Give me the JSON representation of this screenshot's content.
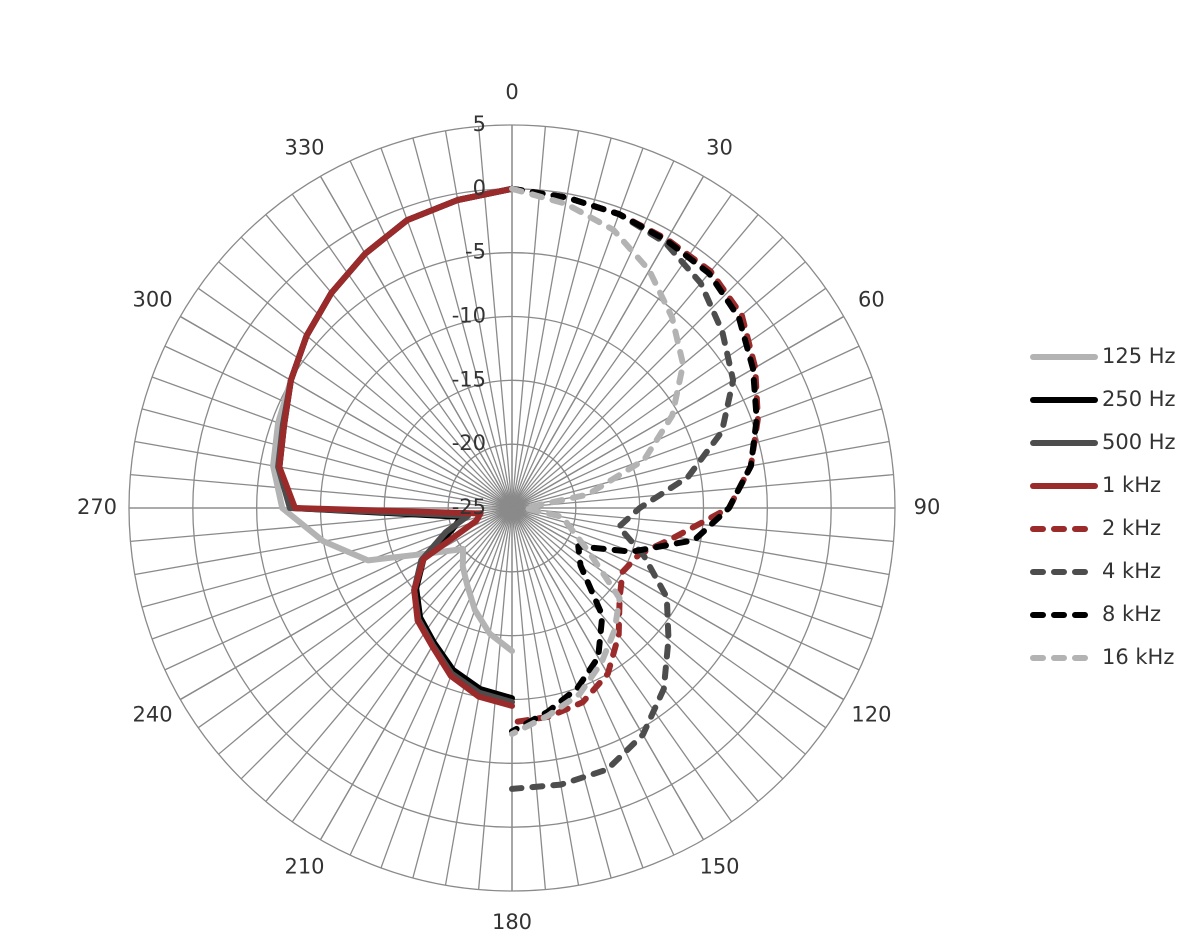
{
  "chart_data": {
    "type": "polar",
    "x": [
      0,
      10,
      20,
      30,
      40,
      50,
      60,
      70,
      80,
      90,
      100,
      110,
      120,
      130,
      140,
      150,
      160,
      170,
      180,
      190,
      200,
      210,
      220,
      230,
      240,
      250,
      260,
      270,
      280,
      290,
      300,
      310,
      320,
      330,
      340,
      350,
      360
    ],
    "rlim": [
      -25,
      5
    ],
    "rticks": [
      -25,
      -20,
      -15,
      -10,
      -5,
      0,
      5
    ],
    "angle_ticks": [
      0,
      30,
      60,
      90,
      120,
      150,
      180,
      210,
      240,
      270,
      300,
      330
    ],
    "legend": "right",
    "series": [
      {
        "name": "125 Hz",
        "color": "#b3b3b3",
        "dashed": false,
        "values": [
          null,
          null,
          null,
          null,
          null,
          null,
          null,
          null,
          null,
          null,
          null,
          null,
          null,
          null,
          null,
          null,
          null,
          null,
          -13.8,
          -15,
          -16.5,
          -18,
          -19,
          -20,
          -18,
          -13,
          -10,
          -7,
          -6,
          -5.5,
          -5,
          -4,
          -3,
          -2,
          -1,
          -0.5,
          0
        ]
      },
      {
        "name": "250 Hz",
        "color": "#000000",
        "dashed": false,
        "values": [
          null,
          null,
          null,
          null,
          null,
          null,
          null,
          null,
          null,
          null,
          null,
          null,
          null,
          null,
          null,
          null,
          null,
          null,
          -10.1,
          -10.6,
          -11.5,
          -12.8,
          -13.8,
          -15.2,
          -17,
          -20,
          -21,
          -7.8,
          -6.5,
          -6,
          -5,
          -4,
          -3,
          -2,
          -1,
          -0.5,
          0
        ]
      },
      {
        "name": "500 Hz",
        "color": "#4d4d4d",
        "dashed": false,
        "values": [
          null,
          null,
          null,
          null,
          null,
          null,
          null,
          null,
          null,
          null,
          null,
          null,
          null,
          null,
          null,
          null,
          null,
          null,
          -9.8,
          -10.3,
          -11.2,
          -12.6,
          -13.6,
          -15,
          -16.8,
          -19.5,
          -21.5,
          -7.6,
          -6.4,
          -5.9,
          -5,
          -4,
          -3,
          -2,
          -1,
          -0.5,
          0
        ]
      },
      {
        "name": "1 kHz",
        "color": "#9b2a2b",
        "dashed": false,
        "values": [
          null,
          null,
          null,
          null,
          null,
          null,
          null,
          null,
          null,
          null,
          null,
          null,
          null,
          null,
          null,
          null,
          null,
          null,
          -9.5,
          -10,
          -11,
          -12.5,
          -13.5,
          -15,
          -17,
          -22,
          -22.5,
          -8,
          -6.5,
          -6,
          -5,
          -4,
          -3,
          -2,
          -1,
          -0.5,
          0
        ]
      },
      {
        "name": "2 kHz",
        "color": "#9b2a2b",
        "dashed": true,
        "values": [
          0,
          -0.3,
          -0.5,
          -0.7,
          -0.8,
          -1.5,
          -3,
          -4.5,
          -6,
          -8,
          -12,
          -14.4,
          -15,
          -14,
          -12,
          -10,
          -8.8,
          -8.4,
          -8.2,
          null,
          null,
          null,
          null,
          null,
          null,
          null,
          null,
          null,
          null,
          null,
          null,
          null,
          null,
          null,
          null,
          null,
          null
        ]
      },
      {
        "name": "4 kHz",
        "color": "#4d4d4d",
        "dashed": true,
        "values": [
          0,
          -0.3,
          -0.5,
          -1,
          -2,
          -3.5,
          -5,
          -7.5,
          -11,
          -15,
          -16.5,
          -14,
          -11,
          -9,
          -6.5,
          -4.5,
          -3.2,
          -3,
          -3,
          null,
          null,
          null,
          null,
          null,
          null,
          null,
          null,
          null,
          null,
          null,
          null,
          null,
          null,
          null,
          null,
          null,
          null
        ]
      },
      {
        "name": "8 kHz",
        "color": "#000000",
        "dashed": true,
        "values": [
          0,
          -0.3,
          -0.5,
          -0.8,
          -1,
          -1.8,
          -3.2,
          -4.6,
          -6,
          -8,
          -10.5,
          -15,
          -19,
          -18,
          -14,
          -11.5,
          -10,
          -8.8,
          -7.5,
          null,
          null,
          null,
          null,
          null,
          null,
          null,
          null,
          null,
          null,
          null,
          null,
          null,
          null,
          null,
          null,
          null,
          null
        ]
      },
      {
        "name": "16 kHz",
        "color": "#b3b3b3",
        "dashed": true,
        "values": [
          0,
          -0.8,
          -1.8,
          -3.5,
          -5.5,
          -7.5,
          -10.5,
          -14,
          -19,
          -24,
          -21,
          -20,
          -18,
          -14,
          -12.5,
          -11,
          -9.5,
          -8.5,
          -7.3,
          null,
          null,
          null,
          null,
          null,
          null,
          null,
          null,
          null,
          null,
          null,
          null,
          null,
          null,
          null,
          null,
          null,
          null
        ]
      }
    ]
  }
}
